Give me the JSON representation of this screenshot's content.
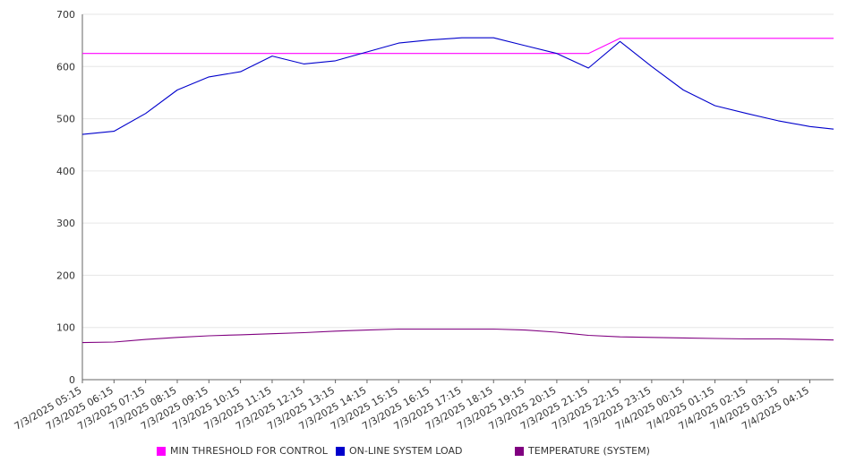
{
  "chart_data": {
    "type": "line",
    "x_tick_labels": [
      "7/3/2025 05:15",
      "7/3/2025 06:15",
      "7/3/2025 07:15",
      "7/3/2025 08:15",
      "7/3/2025 09:15",
      "7/3/2025 10:15",
      "7/3/2025 11:15",
      "7/3/2025 12:15",
      "7/3/2025 13:15",
      "7/3/2025 14:15",
      "7/3/2025 15:15",
      "7/3/2025 16:15",
      "7/3/2025 17:15",
      "7/3/2025 18:15",
      "7/3/2025 19:15",
      "7/3/2025 20:15",
      "7/3/2025 21:15",
      "7/3/2025 22:15",
      "7/3/2025 23:15",
      "7/4/2025 00:15",
      "7/4/2025 01:15",
      "7/4/2025 02:15",
      "7/4/2025 03:15",
      "7/4/2025 04:15"
    ],
    "x_hours": [
      0,
      1,
      2,
      3,
      4,
      5,
      6,
      7,
      8,
      9,
      10,
      11,
      12,
      13,
      14,
      15,
      16,
      17,
      18,
      19,
      20,
      21,
      22,
      23,
      23.75
    ],
    "ylim": [
      0,
      700
    ],
    "y_ticks": [
      0,
      100,
      200,
      300,
      400,
      500,
      600,
      700
    ],
    "grid": true,
    "legend_position": "bottom",
    "series": [
      {
        "name": "MIN THRESHOLD FOR CONTROL",
        "color": "#ff00ff",
        "values": [
          625,
          625,
          625,
          625,
          625,
          625,
          625,
          625,
          625,
          625,
          625,
          625,
          625,
          625,
          625,
          625,
          625,
          654,
          654,
          654,
          654,
          654,
          654,
          654,
          654
        ]
      },
      {
        "name": "ON-LINE SYSTEM LOAD",
        "color": "#0000cc",
        "values": [
          470,
          476,
          510,
          555,
          580,
          590,
          620,
          605,
          611,
          628,
          645,
          651,
          655,
          655,
          640,
          625,
          597,
          648,
          600,
          555,
          525,
          510,
          496,
          485,
          480
        ]
      },
      {
        "name": "TEMPERATURE (SYSTEM)",
        "color": "#800080",
        "values": [
          71,
          72,
          77,
          81,
          84,
          86,
          88,
          90,
          93,
          95,
          97,
          97,
          97,
          97,
          95,
          91,
          85,
          82,
          81,
          80,
          79,
          78,
          78,
          77,
          76
        ]
      }
    ]
  }
}
